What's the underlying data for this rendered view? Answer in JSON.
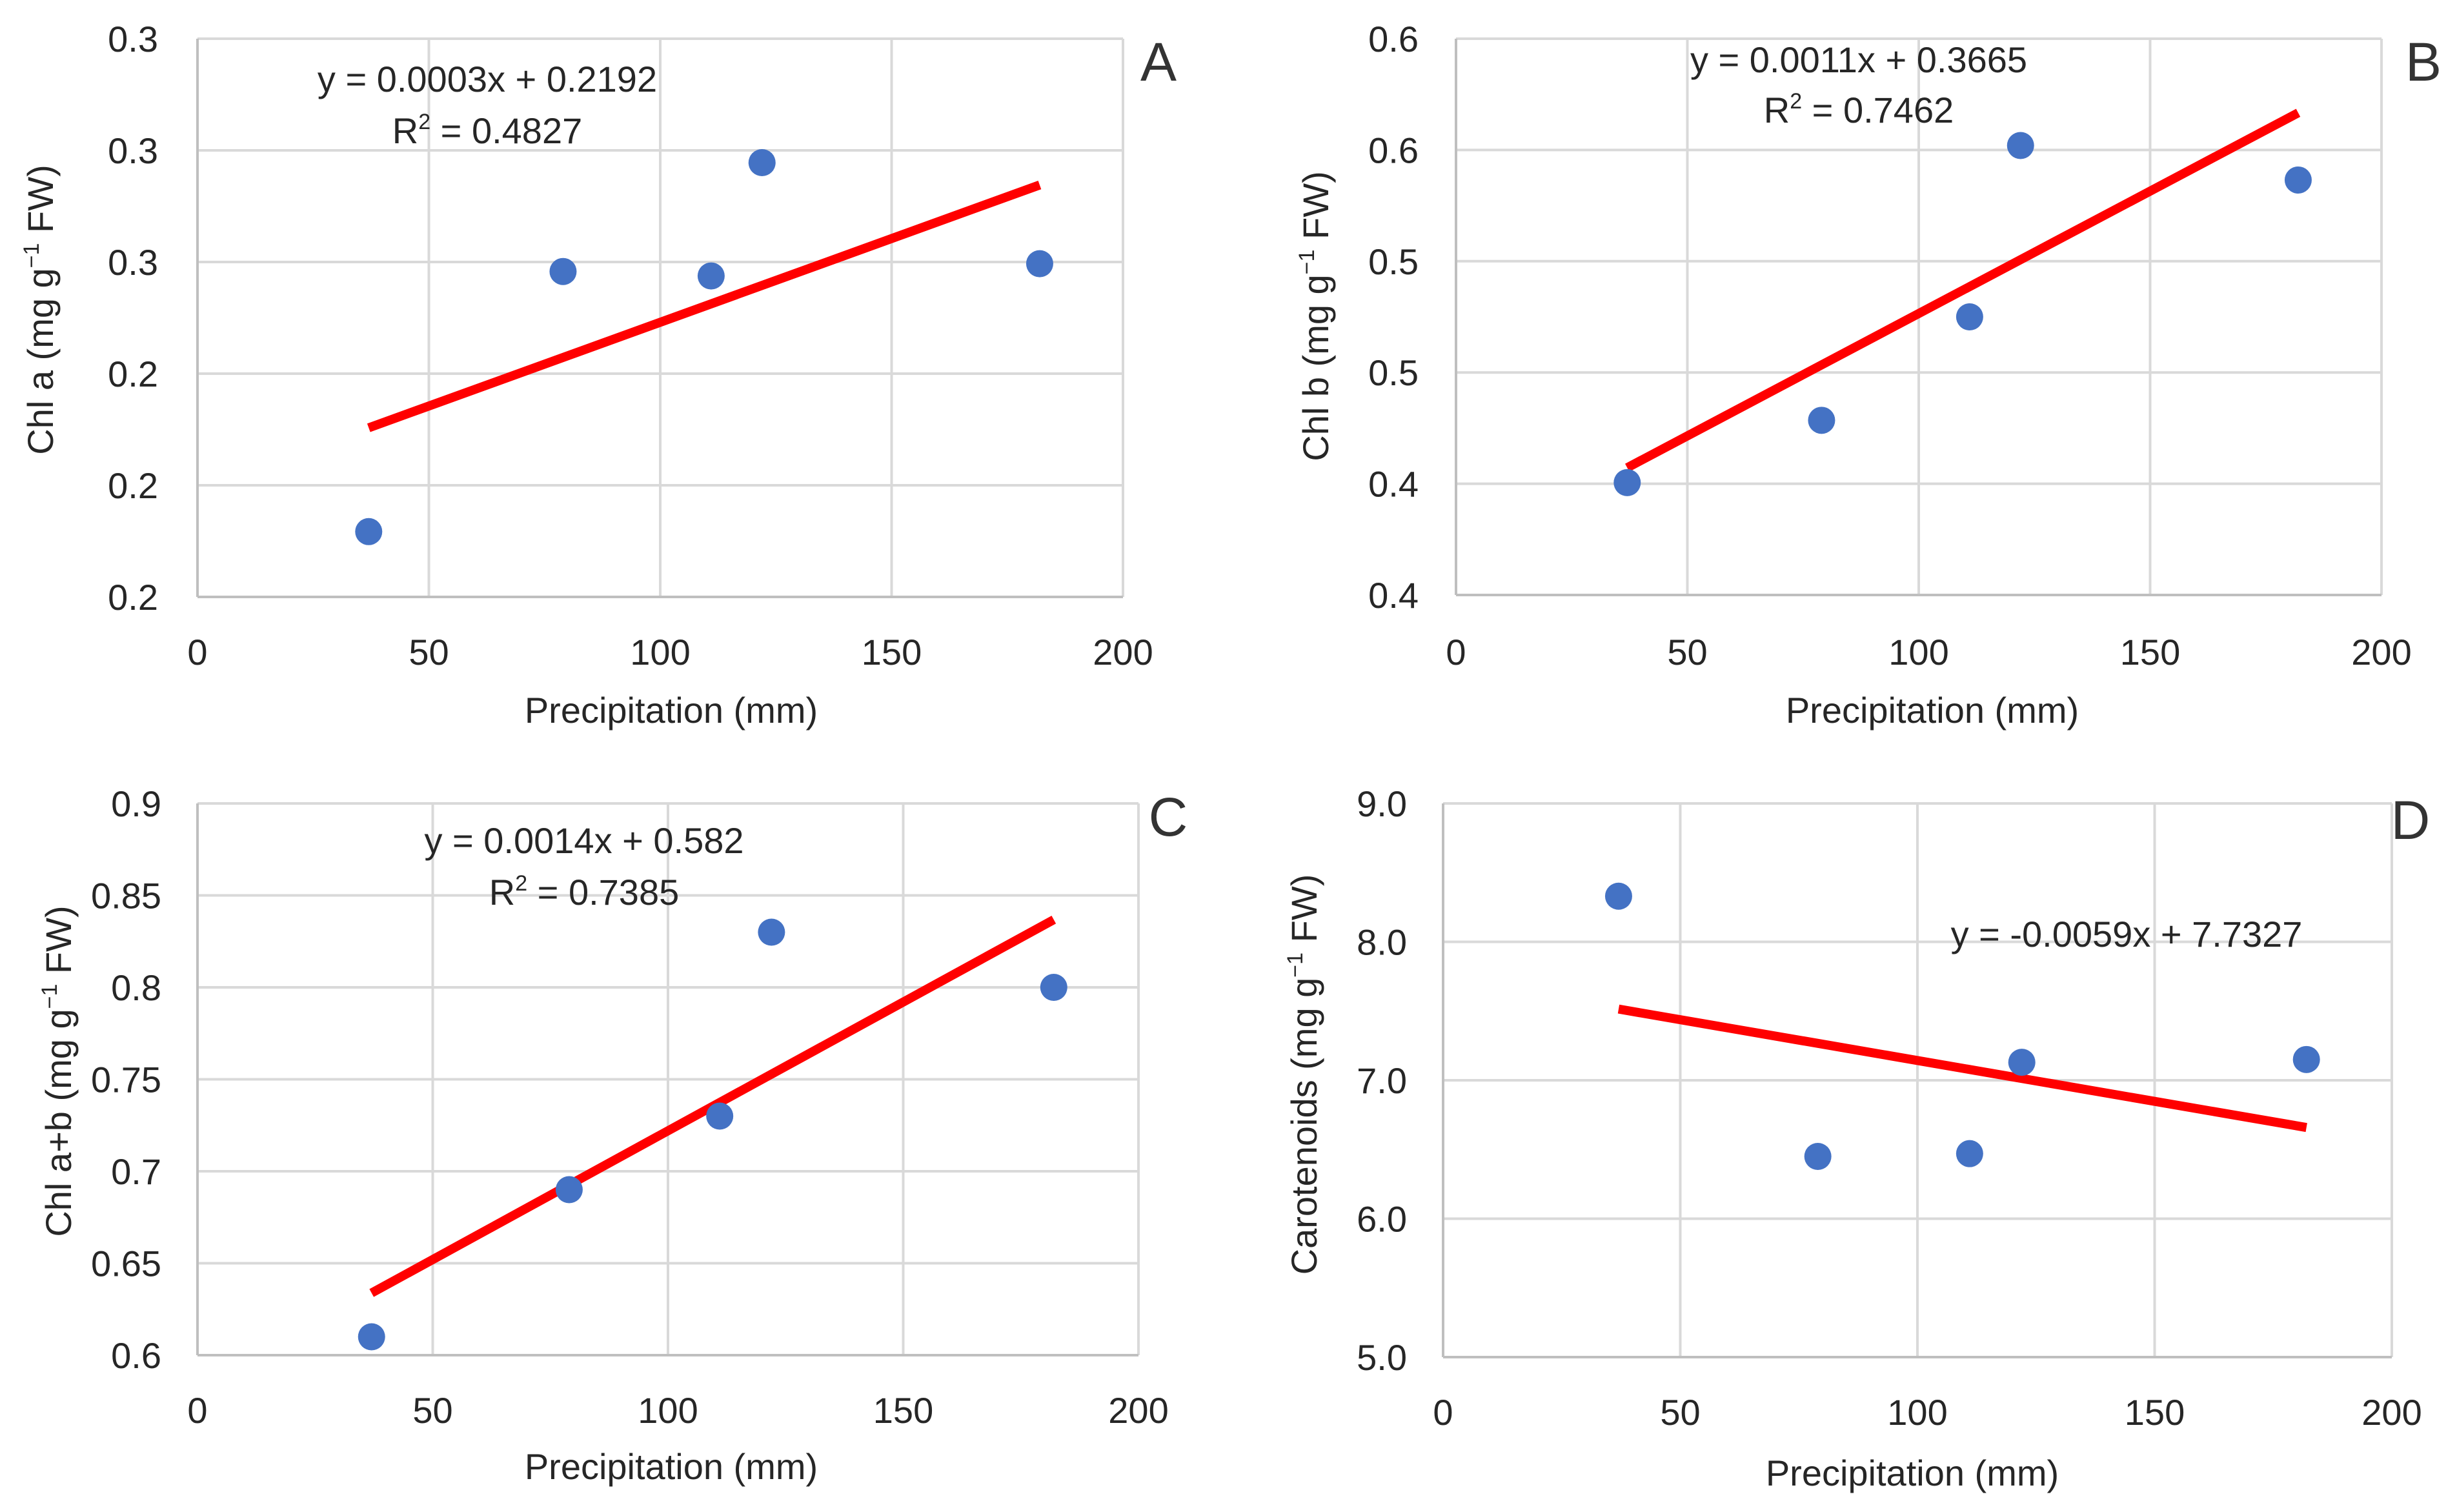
{
  "chart_data": [
    {
      "type": "scatter",
      "panel": "A",
      "xlabel": "Precipitation (mm)",
      "ylabel_parts": [
        "Chl a (mg g",
        "−1",
        " FW)"
      ],
      "xlim": [
        0,
        200
      ],
      "xticks": [
        0,
        50,
        100,
        150,
        200
      ],
      "xtick_labels": [
        "0",
        "50",
        "100",
        "150",
        "200"
      ],
      "ylim": [
        0.2,
        0.3
      ],
      "yticks": [
        0.2,
        0.22,
        0.24,
        0.26,
        0.28,
        0.3
      ],
      "ytick_labels": [
        "0.2",
        "0.2",
        "0.2",
        "0.3",
        "0.3",
        "0.3"
      ],
      "points": [
        {
          "x": 37,
          "y": 0.2117
        },
        {
          "x": 79,
          "y": 0.2583
        },
        {
          "x": 111,
          "y": 0.2575
        },
        {
          "x": 122,
          "y": 0.2778
        },
        {
          "x": 182,
          "y": 0.2597
        }
      ],
      "trendline": {
        "slope": 0.0003,
        "intercept": 0.2192,
        "x_range": [
          37,
          182
        ]
      },
      "equation_text": "y = 0.0003x + 0.2192",
      "r2_value": " = 0.4827"
    },
    {
      "type": "scatter",
      "panel": "B",
      "xlabel": "Precipitation (mm)",
      "ylabel_parts": [
        "Chl b (mg g",
        "−1",
        " FW)"
      ],
      "xlim": [
        0,
        200
      ],
      "xticks": [
        0,
        50,
        100,
        150,
        200
      ],
      "xtick_labels": [
        "0",
        "50",
        "100",
        "150",
        "200"
      ],
      "ylim": [
        0.35,
        0.6
      ],
      "yticks": [
        0.35,
        0.4,
        0.45,
        0.5,
        0.55,
        0.6
      ],
      "ytick_labels": [
        "0.4",
        "0.4",
        "0.5",
        "0.5",
        "0.6",
        "0.6"
      ],
      "points": [
        {
          "x": 37,
          "y": 0.4005
        },
        {
          "x": 79,
          "y": 0.4285
        },
        {
          "x": 111,
          "y": 0.475
        },
        {
          "x": 122,
          "y": 0.552
        },
        {
          "x": 182,
          "y": 0.5365
        }
      ],
      "trendline": {
        "slope": 0.0011,
        "intercept": 0.3665,
        "x_range": [
          37,
          182
        ]
      },
      "equation_text": "y = 0.0011x + 0.3665",
      "r2_value": " = 0.7462"
    },
    {
      "type": "scatter",
      "panel": "C",
      "xlabel": "Precipitation (mm)",
      "ylabel_parts": [
        "Chl a+b (mg g",
        "−1",
        " FW)"
      ],
      "xlim": [
        0,
        200
      ],
      "xticks": [
        0,
        50,
        100,
        150,
        200
      ],
      "xtick_labels": [
        "0",
        "50",
        "100",
        "150",
        "200"
      ],
      "ylim": [
        0.6,
        0.9
      ],
      "yticks": [
        0.6,
        0.65,
        0.7,
        0.75,
        0.8,
        0.85,
        0.9
      ],
      "ytick_labels": [
        "0.6",
        "0.65",
        "0.7",
        "0.75",
        "0.8",
        "0.85",
        "0.9"
      ],
      "points": [
        {
          "x": 37,
          "y": 0.61
        },
        {
          "x": 79,
          "y": 0.69
        },
        {
          "x": 111,
          "y": 0.73
        },
        {
          "x": 122,
          "y": 0.83
        },
        {
          "x": 182,
          "y": 0.8
        }
      ],
      "trendline": {
        "slope": 0.0014,
        "intercept": 0.582,
        "x_range": [
          37,
          182
        ]
      },
      "equation_text": "y = 0.0014x + 0.582",
      "r2_value": " = 0.7385"
    },
    {
      "type": "scatter",
      "panel": "D",
      "xlabel": "Precipitation (mm)",
      "ylabel_parts": [
        "Carotenoids (mg g",
        "−1",
        " FW)"
      ],
      "xlim": [
        0,
        200
      ],
      "xticks": [
        0,
        50,
        100,
        150,
        200
      ],
      "xtick_labels": [
        "0",
        "50",
        "100",
        "150",
        "200"
      ],
      "ylim": [
        5.0,
        9.0
      ],
      "yticks": [
        5.0,
        6.0,
        7.0,
        8.0,
        9.0
      ],
      "ytick_labels": [
        "5.0",
        "6.0",
        "7.0",
        "8.0",
        "9.0"
      ],
      "points": [
        {
          "x": 37,
          "y": 8.33
        },
        {
          "x": 79,
          "y": 6.45
        },
        {
          "x": 111,
          "y": 6.47
        },
        {
          "x": 122,
          "y": 7.13
        },
        {
          "x": 182,
          "y": 7.15
        }
      ],
      "trendline": {
        "slope": -0.0059,
        "intercept": 7.7327,
        "x_range": [
          37,
          182
        ]
      },
      "equation_text": "y = -0.0059x + 7.7327",
      "r2_value": ""
    }
  ],
  "r2_prefix": "R",
  "r2_superscript": "2"
}
